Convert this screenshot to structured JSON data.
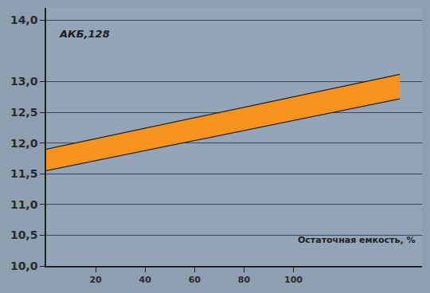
{
  "chart_data": {
    "type": "range_area",
    "y_label": "АКБ,128",
    "x_label": "Остаточная емкость, %",
    "x": [
      0,
      143
    ],
    "series": [
      {
        "values": [
          11.9,
          13.12
        ]
      },
      {
        "values": [
          11.55,
          12.72
        ]
      }
    ],
    "color": "#f7941d",
    "xlim": [
      0,
      152
    ],
    "xticks": [
      20,
      40,
      60,
      80,
      100
    ],
    "ylim": [
      10,
      14.2
    ],
    "yticks": [
      {
        "value": 10,
        "label": "10,0"
      },
      {
        "value": 10.5,
        "label": "10,5"
      },
      {
        "value": 11,
        "label": "11,0"
      },
      {
        "value": 11.5,
        "label": "11,5"
      },
      {
        "value": 12,
        "label": "12,0"
      },
      {
        "value": 12.5,
        "label": "12,5"
      },
      {
        "value": 13,
        "label": "13,0"
      },
      {
        "value": 14,
        "label": "14,0"
      }
    ],
    "grid": true
  }
}
